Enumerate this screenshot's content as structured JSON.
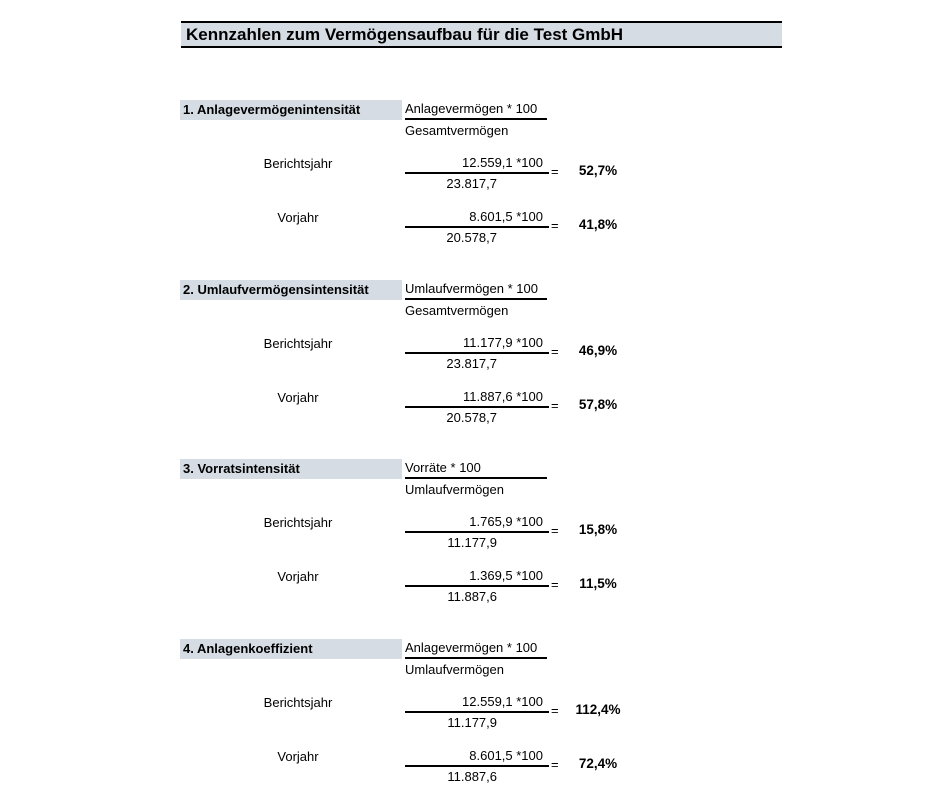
{
  "page": {
    "title": "Kennzahlen zum Vermögensaufbau für die Test GmbH"
  },
  "labels": {
    "equals": "="
  },
  "sections": [
    {
      "name": "1. Anlagevermögenintensität",
      "formula": {
        "numerator": "Anlagevermögen * 100",
        "denominator": "Gesamtvermögen"
      },
      "rows": [
        {
          "label": "Berichtsjahr",
          "numerator": "12.559,1 *100",
          "denominator": "23.817,7",
          "result": "52,7%"
        },
        {
          "label": "Vorjahr",
          "numerator": "8.601,5 *100",
          "denominator": "20.578,7",
          "result": "41,8%"
        }
      ]
    },
    {
      "name": "2. Umlaufvermögensintensität",
      "formula": {
        "numerator": "Umlaufvermögen * 100",
        "denominator": "Gesamtvermögen"
      },
      "rows": [
        {
          "label": "Berichtsjahr",
          "numerator": "11.177,9 *100",
          "denominator": "23.817,7",
          "result": "46,9%"
        },
        {
          "label": "Vorjahr",
          "numerator": "11.887,6 *100",
          "denominator": "20.578,7",
          "result": "57,8%"
        }
      ]
    },
    {
      "name": "3. Vorratsintensität",
      "formula": {
        "numerator": "Vorräte * 100",
        "denominator": "Umlaufvermögen"
      },
      "rows": [
        {
          "label": "Berichtsjahr",
          "numerator": "1.765,9 *100",
          "denominator": "11.177,9",
          "result": "15,8%"
        },
        {
          "label": "Vorjahr",
          "numerator": "1.369,5 *100",
          "denominator": "11.887,6",
          "result": "11,5%"
        }
      ]
    },
    {
      "name": "4. Anlagenkoeffizient",
      "formula": {
        "numerator": "Anlagevermögen * 100",
        "denominator": "Umlaufvermögen"
      },
      "rows": [
        {
          "label": "Berichtsjahr",
          "numerator": "12.559,1 *100",
          "denominator": "11.177,9",
          "result": "112,4%"
        },
        {
          "label": "Vorjahr",
          "numerator": "8.601,5 *100",
          "denominator": "11.887,6",
          "result": "72,4%"
        }
      ]
    }
  ],
  "colors": {
    "header_bg": "#d6dce4",
    "border": "#000000",
    "text": "#000000",
    "page_bg": "#ffffff"
  }
}
